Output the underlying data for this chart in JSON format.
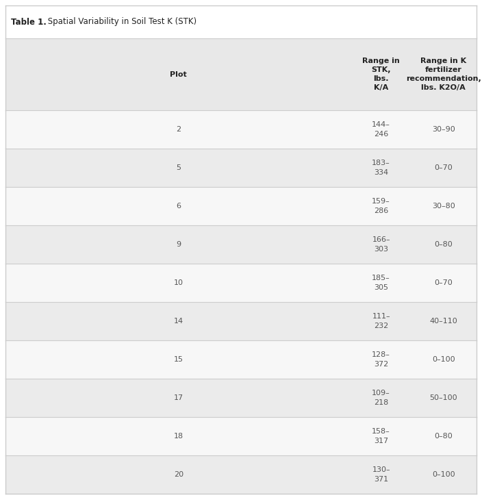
{
  "title_bold": "Table 1.",
  "title_rest": " Spatial Variability in Soil Test K (STK)",
  "col_headers": [
    "Plot",
    "Range in\nSTK,\nlbs.\nK/A",
    "Range in K\nfertilizer\nrecommendation,\nlbs. K2O/A"
  ],
  "rows": [
    [
      "2",
      "144–\n246",
      "30–90"
    ],
    [
      "5",
      "183–\n334",
      "0–70"
    ],
    [
      "6",
      "159–\n286",
      "30–80"
    ],
    [
      "9",
      "166–\n303",
      "0–80"
    ],
    [
      "10",
      "185–\n305",
      "0–70"
    ],
    [
      "14",
      "111–\n232",
      "40–110"
    ],
    [
      "15",
      "128–\n372",
      "0–100"
    ],
    [
      "17",
      "109–\n218",
      "50–100"
    ],
    [
      "18",
      "158–\n317",
      "0–80"
    ],
    [
      "20",
      "130–\n371",
      "0–100"
    ]
  ],
  "header_bg": "#e8e8e8",
  "row_bg_odd": "#ebebeb",
  "row_bg_even": "#f7f7f7",
  "title_bg": "#ffffff",
  "border_color": "#cccccc",
  "text_color": "#555555",
  "font_size_title": 8.5,
  "font_size_header": 8.0,
  "font_size_data": 8.0,
  "fig_width": 7.04,
  "fig_height": 7.36,
  "dpi": 100
}
